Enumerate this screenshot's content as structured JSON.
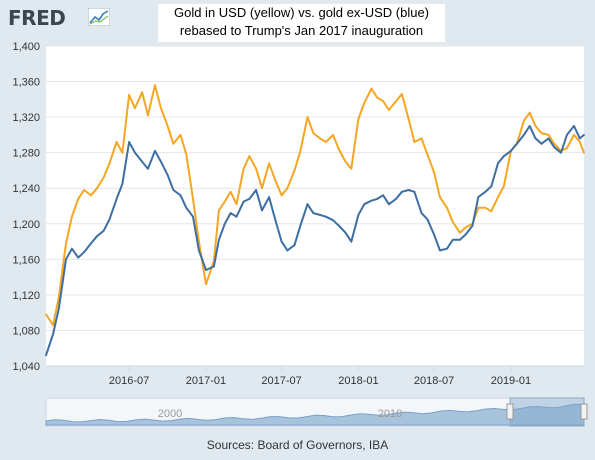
{
  "logo": {
    "text": "FRED",
    "icon": "trend-line-icon"
  },
  "title": {
    "line1": "Gold in USD (yellow) vs. gold ex-USD (blue)",
    "line2": "rebased to Trump's Jan 2017 inauguration"
  },
  "source": "Sources: Board of Governors, IBA",
  "colors": {
    "usd": "#f5a623",
    "exusd": "#3d6fa3",
    "plot_bg": "#ffffff",
    "grid": "#e6e6e6",
    "navigator_fill": "#a8c3dc",
    "navigator_window": "#7fa6cc"
  },
  "navigator": {
    "labels": [
      "2000",
      "2010"
    ]
  },
  "chart_data": {
    "type": "line",
    "xlabel": "",
    "ylabel": "",
    "ylim": [
      1040,
      1400
    ],
    "yticks": [
      1040,
      1080,
      1120,
      1160,
      1200,
      1240,
      1280,
      1320,
      1360,
      1400
    ],
    "xlim": [
      "2015-12-15",
      "2019-06-25"
    ],
    "xticks": [
      "2016-07",
      "2017-01",
      "2017-07",
      "2018-01",
      "2018-07",
      "2019-01"
    ],
    "grid": true,
    "legend": "none",
    "series": [
      {
        "color": "yellow",
        "x": [
          "2015-12-15",
          "2016-01-01",
          "2016-01-15",
          "2016-02-01",
          "2016-02-15",
          "2016-03-01",
          "2016-03-15",
          "2016-04-01",
          "2016-04-15",
          "2016-05-01",
          "2016-05-15",
          "2016-06-01",
          "2016-06-15",
          "2016-07-01",
          "2016-07-15",
          "2016-08-01",
          "2016-08-15",
          "2016-09-01",
          "2016-09-15",
          "2016-10-01",
          "2016-10-15",
          "2016-11-01",
          "2016-11-15",
          "2016-12-01",
          "2016-12-15",
          "2017-01-01",
          "2017-01-20",
          "2017-02-01",
          "2017-02-15",
          "2017-03-01",
          "2017-03-15",
          "2017-04-01",
          "2017-04-15",
          "2017-05-01",
          "2017-05-15",
          "2017-06-01",
          "2017-06-15",
          "2017-07-01",
          "2017-07-15",
          "2017-08-01",
          "2017-08-15",
          "2017-09-01",
          "2017-09-15",
          "2017-10-01",
          "2017-10-15",
          "2017-11-01",
          "2017-11-15",
          "2017-12-01",
          "2017-12-15",
          "2018-01-01",
          "2018-01-15",
          "2018-02-01",
          "2018-02-15",
          "2018-03-01",
          "2018-03-15",
          "2018-04-01",
          "2018-04-15",
          "2018-05-01",
          "2018-05-15",
          "2018-06-01",
          "2018-06-15",
          "2018-07-01",
          "2018-07-15",
          "2018-08-01",
          "2018-08-15",
          "2018-09-01",
          "2018-09-15",
          "2018-10-01",
          "2018-10-15",
          "2018-11-01",
          "2018-11-15",
          "2018-12-01",
          "2018-12-15",
          "2019-01-01",
          "2019-01-15",
          "2019-02-01",
          "2019-02-15",
          "2019-03-01",
          "2019-03-15",
          "2019-04-01",
          "2019-04-15",
          "2019-05-01",
          "2019-05-15",
          "2019-06-01",
          "2019-06-15",
          "2019-06-25"
        ],
        "values": [
          1098,
          1086,
          1118,
          1178,
          1208,
          1228,
          1238,
          1232,
          1240,
          1252,
          1268,
          1292,
          1280,
          1345,
          1330,
          1348,
          1322,
          1356,
          1330,
          1310,
          1290,
          1300,
          1278,
          1228,
          1180,
          1132,
          1158,
          1215,
          1225,
          1236,
          1222,
          1262,
          1276,
          1262,
          1240,
          1268,
          1250,
          1232,
          1240,
          1260,
          1282,
          1320,
          1302,
          1296,
          1292,
          1300,
          1284,
          1270,
          1262,
          1318,
          1336,
          1352,
          1342,
          1338,
          1328,
          1338,
          1346,
          1318,
          1292,
          1296,
          1278,
          1258,
          1230,
          1218,
          1202,
          1190,
          1196,
          1200,
          1218,
          1218,
          1214,
          1230,
          1242,
          1282,
          1290,
          1316,
          1325,
          1310,
          1302,
          1300,
          1290,
          1282,
          1285,
          1300,
          1292,
          1280
        ]
      },
      {
        "color": "blue",
        "x": [
          "2015-12-15",
          "2016-01-01",
          "2016-01-15",
          "2016-02-01",
          "2016-02-15",
          "2016-03-01",
          "2016-03-15",
          "2016-04-01",
          "2016-04-15",
          "2016-05-01",
          "2016-05-15",
          "2016-06-01",
          "2016-06-15",
          "2016-07-01",
          "2016-07-15",
          "2016-08-01",
          "2016-08-15",
          "2016-09-01",
          "2016-09-15",
          "2016-10-01",
          "2016-10-15",
          "2016-11-01",
          "2016-11-15",
          "2016-12-01",
          "2016-12-15",
          "2017-01-01",
          "2017-01-20",
          "2017-02-01",
          "2017-02-15",
          "2017-03-01",
          "2017-03-15",
          "2017-04-01",
          "2017-04-15",
          "2017-05-01",
          "2017-05-15",
          "2017-06-01",
          "2017-06-15",
          "2017-07-01",
          "2017-07-15",
          "2017-08-01",
          "2017-08-15",
          "2017-09-01",
          "2017-09-15",
          "2017-10-01",
          "2017-10-15",
          "2017-11-01",
          "2017-11-15",
          "2017-12-01",
          "2017-12-15",
          "2018-01-01",
          "2018-01-15",
          "2018-02-01",
          "2018-02-15",
          "2018-03-01",
          "2018-03-15",
          "2018-04-01",
          "2018-04-15",
          "2018-05-01",
          "2018-05-15",
          "2018-06-01",
          "2018-06-15",
          "2018-07-01",
          "2018-07-15",
          "2018-08-01",
          "2018-08-15",
          "2018-09-01",
          "2018-09-15",
          "2018-10-01",
          "2018-10-15",
          "2018-11-01",
          "2018-11-15",
          "2018-12-01",
          "2018-12-15",
          "2019-01-01",
          "2019-01-15",
          "2019-02-01",
          "2019-02-15",
          "2019-03-01",
          "2019-03-15",
          "2019-04-01",
          "2019-04-15",
          "2019-05-01",
          "2019-05-15",
          "2019-06-01",
          "2019-06-15",
          "2019-06-25"
        ],
        "values": [
          1052,
          1076,
          1105,
          1160,
          1172,
          1162,
          1168,
          1178,
          1186,
          1192,
          1205,
          1228,
          1245,
          1292,
          1280,
          1270,
          1262,
          1282,
          1270,
          1255,
          1238,
          1232,
          1218,
          1208,
          1170,
          1148,
          1152,
          1182,
          1200,
          1212,
          1208,
          1225,
          1228,
          1238,
          1215,
          1230,
          1206,
          1180,
          1170,
          1176,
          1198,
          1222,
          1212,
          1210,
          1208,
          1204,
          1198,
          1190,
          1180,
          1210,
          1222,
          1226,
          1228,
          1232,
          1222,
          1228,
          1236,
          1238,
          1236,
          1212,
          1205,
          1188,
          1170,
          1172,
          1182,
          1182,
          1188,
          1198,
          1230,
          1236,
          1242,
          1268,
          1276,
          1282,
          1290,
          1300,
          1310,
          1296,
          1290,
          1296,
          1286,
          1280,
          1300,
          1310,
          1296,
          1300
        ]
      }
    ]
  }
}
